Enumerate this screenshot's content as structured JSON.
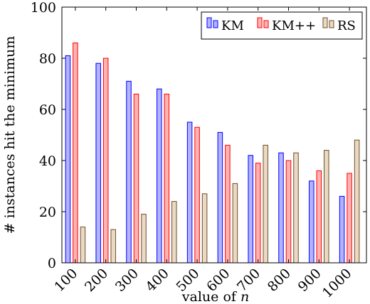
{
  "chart_data": {
    "type": "bar",
    "title": "",
    "xlabel": "value of n",
    "xlabel_prefix": "value of ",
    "xlabel_var": "n",
    "ylabel": "# instances hit the minimum",
    "ylim": [
      0,
      100
    ],
    "yticks": [
      0,
      20,
      40,
      60,
      80,
      100
    ],
    "grid": false,
    "legend_position": "top-right",
    "categories": [
      "100",
      "200",
      "300",
      "400",
      "500",
      "600",
      "700",
      "800",
      "900",
      "1000"
    ],
    "series": [
      {
        "name": "KM",
        "fill": "#b3b3ff",
        "stroke": "#0000ff",
        "values": [
          81,
          78,
          71,
          68,
          55,
          51,
          42,
          43,
          32,
          26
        ]
      },
      {
        "name": "KM++",
        "fill": "#ffb3b3",
        "stroke": "#ff0000",
        "values": [
          86,
          80,
          66,
          66,
          53,
          46,
          39,
          40,
          36,
          35
        ]
      },
      {
        "name": "RS",
        "fill": "#ead9c4",
        "stroke": "#6b4f2a",
        "values": [
          14,
          13,
          19,
          24,
          27,
          31,
          46,
          43,
          44,
          48
        ]
      }
    ]
  }
}
